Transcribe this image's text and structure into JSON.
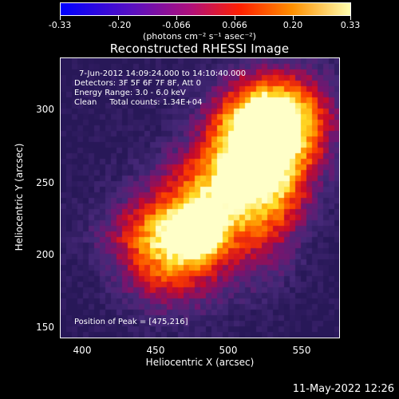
{
  "colorbar": {
    "ticks": [
      "-0.33",
      "-0.20",
      "-0.066",
      "0.066",
      "0.20",
      "0.33"
    ],
    "units": "(photons cm⁻² s⁻¹ asec⁻²)"
  },
  "title": "Reconstructed RHESSI Image",
  "info": {
    "time": "7-Jun-2012 14:09:24.000 to 14:10:40.000",
    "detectors": "Detectors: 3F 5F 6F 7F 8F, Att 0",
    "energy": "Energy Range: 3.0 - 6.0 keV",
    "clean": "Clean     Total counts: 1.34E+04",
    "peak": "Position of Peak = [475,216]"
  },
  "axes": {
    "xlabel": "Heliocentric X (arcsec)",
    "ylabel": "Heliocentric Y (arcsec)",
    "xticks": [
      "400",
      "450",
      "500",
      "550"
    ],
    "yticks": [
      "150",
      "200",
      "250",
      "300"
    ]
  },
  "timestamp": "11-May-2022 12:26"
}
